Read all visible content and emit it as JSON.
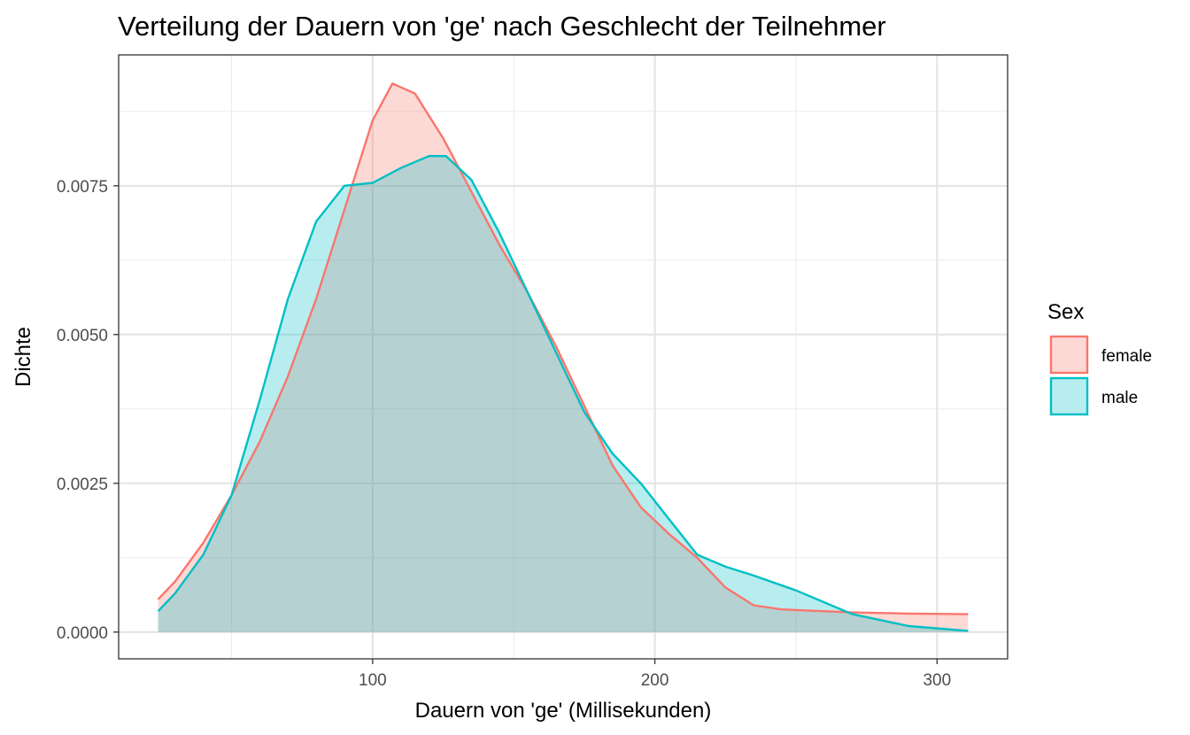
{
  "chart_data": {
    "type": "area",
    "title": "Verteilung der Dauern von 'ge' nach Geschlecht der Teilnehmer",
    "xlabel": "Dauern von 'ge' (Millisekunden)",
    "ylabel": "Dichte",
    "xlim": [
      10,
      325
    ],
    "ylim": [
      -0.00045,
      0.0097
    ],
    "x_ticks": [
      100,
      200,
      300
    ],
    "x_tick_labels": [
      "100",
      "200",
      "300"
    ],
    "y_ticks": [
      0,
      0.0025,
      0.005,
      0.0075
    ],
    "y_tick_labels": [
      "0.0000",
      "0.0025",
      "0.0050",
      "0.0075"
    ],
    "grid": true,
    "legend": {
      "title": "Sex",
      "position": "right"
    },
    "series": [
      {
        "name": "female",
        "color": "#F8766D",
        "fill": "#F8766D",
        "x": [
          24,
          30,
          40,
          50,
          60,
          70,
          80,
          90,
          100,
          107,
          115,
          125,
          135,
          145,
          155,
          165,
          175,
          185,
          195,
          205,
          215,
          225,
          235,
          245,
          255,
          270,
          290,
          311
        ],
        "y": [
          0.00055,
          0.00085,
          0.0015,
          0.0023,
          0.0032,
          0.0043,
          0.0056,
          0.0071,
          0.0086,
          0.00922,
          0.00905,
          0.0083,
          0.0074,
          0.0065,
          0.0057,
          0.0048,
          0.0038,
          0.0028,
          0.0021,
          0.00165,
          0.00125,
          0.00075,
          0.00045,
          0.00038,
          0.00036,
          0.00033,
          0.00031,
          0.0003
        ]
      },
      {
        "name": "male",
        "color": "#00BFC4",
        "fill": "#00BFC4",
        "x": [
          24,
          30,
          40,
          50,
          60,
          70,
          80,
          90,
          100,
          110,
          120,
          126,
          135,
          145,
          155,
          165,
          175,
          185,
          195,
          205,
          215,
          225,
          235,
          250,
          270,
          290,
          311
        ],
        "y": [
          0.00035,
          0.00065,
          0.0013,
          0.0023,
          0.0039,
          0.0056,
          0.0069,
          0.0075,
          0.00755,
          0.0078,
          0.008,
          0.008,
          0.0076,
          0.0067,
          0.0057,
          0.0047,
          0.0037,
          0.003,
          0.0025,
          0.0019,
          0.0013,
          0.0011,
          0.00095,
          0.0007,
          0.0003,
          0.0001,
          2e-05
        ]
      }
    ]
  }
}
